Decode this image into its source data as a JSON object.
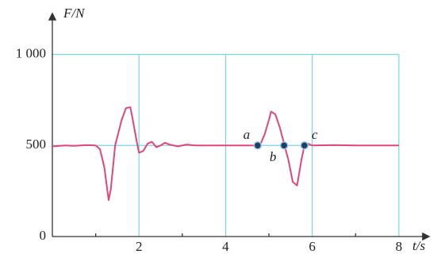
{
  "chart_data": {
    "type": "line",
    "y_label": "F/N",
    "x_label": "t/s",
    "xlim": [
      0,
      8.68
    ],
    "ylim": [
      0,
      1220
    ],
    "xticks": [
      2,
      4,
      6,
      8
    ],
    "xminorticks": [
      1,
      3,
      5,
      7
    ],
    "yticks": [
      0,
      500,
      {
        "value": 1000,
        "label": "1 000"
      }
    ],
    "grid": true,
    "color": "#e0457b",
    "x": [
      0,
      0.3,
      0.5,
      0.8,
      1.0,
      1.1,
      1.2,
      1.3,
      1.35,
      1.45,
      1.6,
      1.7,
      1.8,
      1.85,
      1.95,
      2.0,
      2.1,
      2.2,
      2.3,
      2.4,
      2.5,
      2.6,
      2.7,
      2.9,
      3.1,
      3.3,
      3.8,
      4.3,
      4.7,
      4.8,
      4.9,
      5.0,
      5.05,
      5.15,
      5.25,
      5.35,
      5.45,
      5.55,
      5.65,
      5.75,
      5.82,
      5.9,
      6.0,
      6.5,
      7.0,
      7.5,
      8.0
    ],
    "values": [
      495,
      500,
      498,
      502,
      500,
      480,
      380,
      200,
      260,
      500,
      640,
      705,
      710,
      650,
      520,
      460,
      470,
      510,
      520,
      490,
      500,
      515,
      505,
      495,
      505,
      500,
      500,
      500,
      500,
      505,
      560,
      640,
      686,
      670,
      600,
      510,
      420,
      300,
      280,
      420,
      500,
      510,
      500,
      502,
      500,
      500,
      500
    ],
    "annotations": [
      {
        "text": "a",
        "x": 4.74,
        "y": 500
      },
      {
        "text": "b",
        "x": 5.35,
        "y": 500
      },
      {
        "text": "c",
        "x": 5.82,
        "y": 500
      }
    ]
  }
}
